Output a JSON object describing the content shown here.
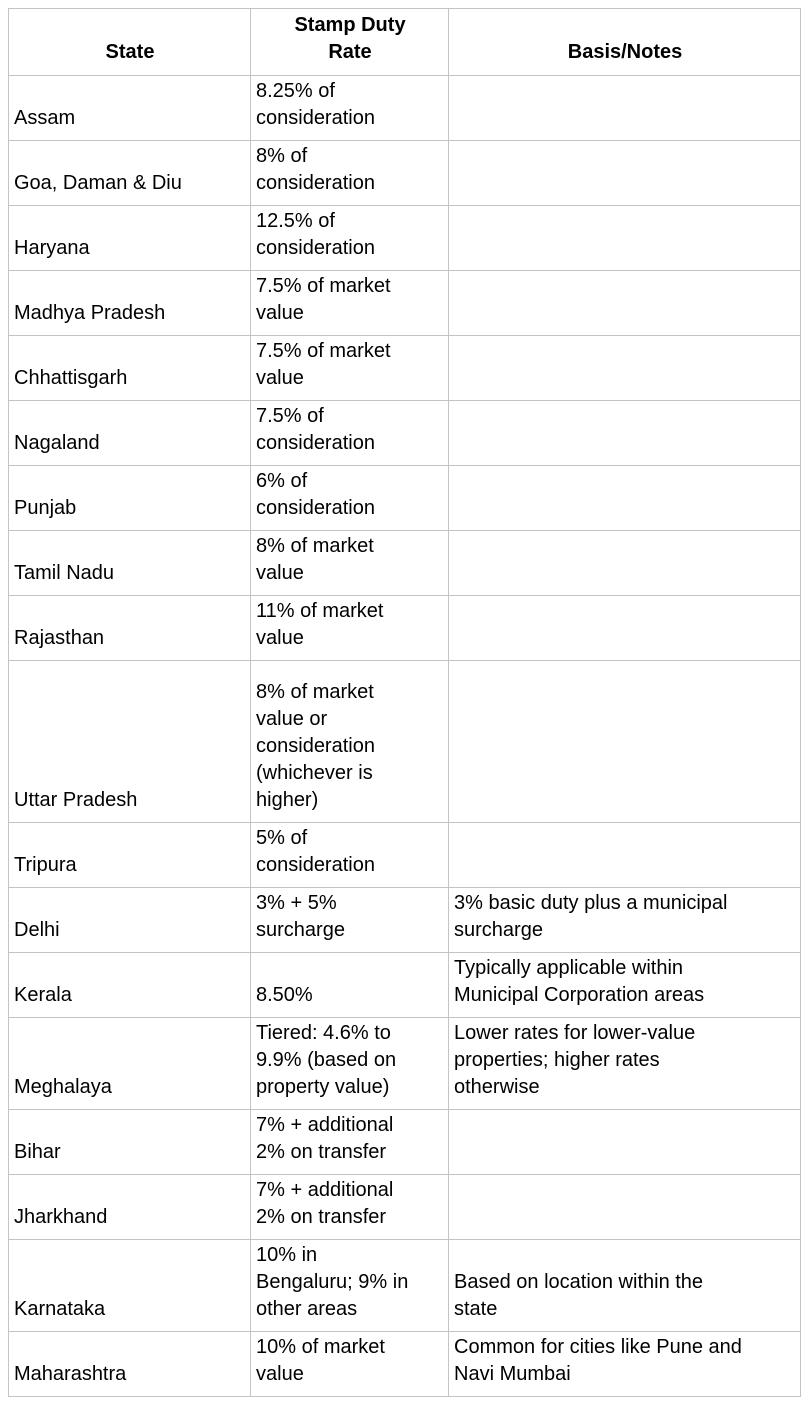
{
  "table": {
    "columns": [
      {
        "label": "State"
      },
      {
        "label": "Stamp Duty\nRate"
      },
      {
        "label": "Basis/Notes"
      }
    ],
    "rows": [
      {
        "state": "Assam",
        "rate": "8.25% of\nconsideration",
        "notes": ""
      },
      {
        "state": "Goa, Daman & Diu",
        "rate": "8% of\nconsideration",
        "notes": ""
      },
      {
        "state": "Haryana",
        "rate": "12.5% of\nconsideration",
        "notes": ""
      },
      {
        "state": "Madhya Pradesh",
        "rate": "7.5% of market\nvalue",
        "notes": ""
      },
      {
        "state": "Chhattisgarh",
        "rate": "7.5% of market\nvalue",
        "notes": ""
      },
      {
        "state": "Nagaland",
        "rate": "7.5% of\nconsideration",
        "notes": ""
      },
      {
        "state": "Punjab",
        "rate": "6% of\nconsideration",
        "notes": ""
      },
      {
        "state": "Tamil Nadu",
        "rate": "8% of market\nvalue",
        "notes": ""
      },
      {
        "state": "Rajasthan",
        "rate": "11% of market\nvalue",
        "notes": ""
      },
      {
        "state": "Uttar Pradesh",
        "rate": "8% of market\nvalue or\nconsideration\n(whichever is\nhigher)",
        "notes": ""
      },
      {
        "state": "Tripura",
        "rate": "5% of\nconsideration",
        "notes": ""
      },
      {
        "state": "Delhi",
        "rate": "3% + 5%\nsurcharge",
        "notes": "3% basic duty plus a municipal\nsurcharge"
      },
      {
        "state": "Kerala",
        "rate": "8.50%",
        "notes": "Typically applicable within\nMunicipal Corporation areas"
      },
      {
        "state": "Meghalaya",
        "rate": "Tiered: 4.6% to\n9.9% (based on\nproperty value)",
        "notes": "Lower rates for lower-value\nproperties; higher rates\notherwise"
      },
      {
        "state": "Bihar",
        "rate": "7% + additional\n2% on transfer",
        "notes": ""
      },
      {
        "state": "Jharkhand",
        "rate": "7% + additional\n2% on transfer",
        "notes": ""
      },
      {
        "state": "Karnataka",
        "rate": "10% in\nBengaluru; 9% in\nother areas",
        "notes": "Based on location within the\nstate"
      },
      {
        "state": "Maharashtra",
        "rate": "10% of market\nvalue",
        "notes": "Common for cities like Pune and\nNavi Mumbai"
      }
    ]
  },
  "colors": {
    "border": "#c4c4c4",
    "text": "#000000",
    "background": "#ffffff"
  }
}
